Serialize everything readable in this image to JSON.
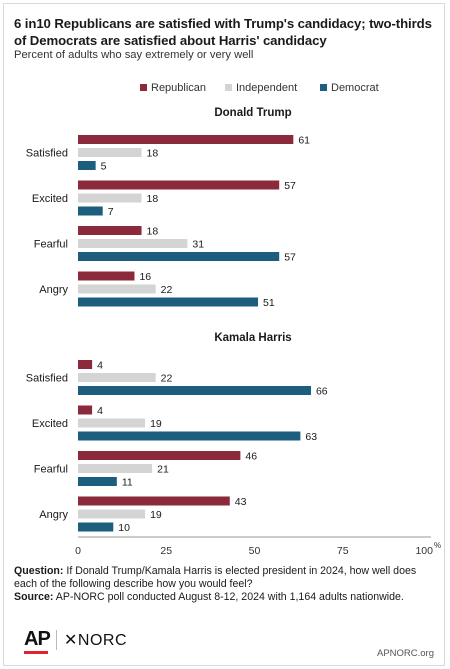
{
  "header": {
    "title": "6 in10 Republicans are satisfied with Trump's candidacy; two-thirds of Democrats are satisfied about Harris' candidacy",
    "subtitle": "Percent of adults who say extremely or very well"
  },
  "colors": {
    "republican": "#8b2a3a",
    "independent": "#d4d4d4",
    "democrat": "#1d5d7e",
    "text": "#1a1a1a",
    "axis": "#999999"
  },
  "chart_data": {
    "type": "bar",
    "orientation": "horizontal",
    "legend_position": "top",
    "grid": false,
    "xlim": [
      0,
      100
    ],
    "x_ticks": [
      "0",
      "25",
      "50",
      "75",
      "100"
    ],
    "x_unit": "%",
    "series_names": [
      "Republican",
      "Independent",
      "Democrat"
    ],
    "panels": [
      {
        "title": "Donald Trump",
        "categories": [
          "Satisfied",
          "Excited",
          "Fearful",
          "Angry"
        ],
        "series": [
          {
            "name": "Republican",
            "values": [
              61,
              57,
              18,
              16
            ]
          },
          {
            "name": "Independent",
            "values": [
              18,
              18,
              31,
              22
            ]
          },
          {
            "name": "Democrat",
            "values": [
              5,
              7,
              57,
              51
            ]
          }
        ]
      },
      {
        "title": "Kamala Harris",
        "categories": [
          "Satisfied",
          "Excited",
          "Fearful",
          "Angry"
        ],
        "series": [
          {
            "name": "Republican",
            "values": [
              4,
              4,
              46,
              43
            ]
          },
          {
            "name": "Independent",
            "values": [
              22,
              19,
              21,
              19
            ]
          },
          {
            "name": "Democrat",
            "values": [
              66,
              63,
              11,
              10
            ]
          }
        ]
      }
    ]
  },
  "footer": {
    "question_label": "Question:",
    "question_text": " If Donald Trump/Kamala Harris is elected president in 2024, how well does each of the following describe how you would feel?",
    "source_label": "Source:",
    "source_text": " AP-NORC poll conducted August 8-12, 2024 with 1,164 adults nationwide."
  },
  "logos": {
    "ap": "AP",
    "norc": "✕NORC",
    "site": "APNORC.org"
  }
}
